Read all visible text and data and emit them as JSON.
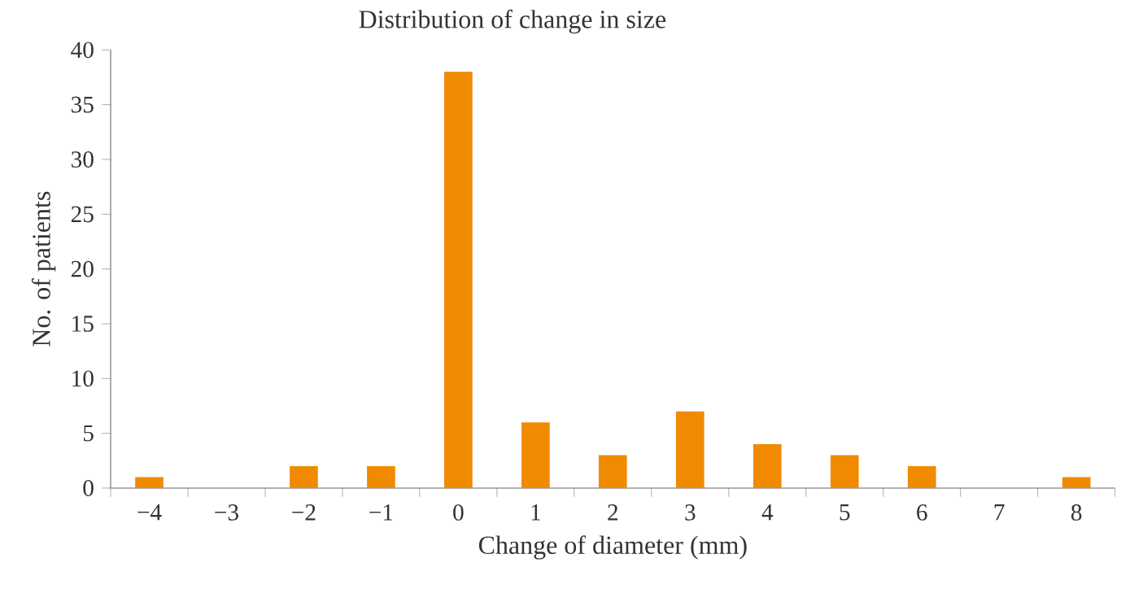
{
  "chart_data": {
    "type": "bar",
    "title": "Distribution of change in size",
    "xlabel": "Change of diameter (mm)",
    "ylabel": "No. of patients",
    "categories": [
      "−4",
      "−3",
      "−2",
      "−1",
      "0",
      "1",
      "2",
      "3",
      "4",
      "5",
      "6",
      "7",
      "8"
    ],
    "values": [
      1,
      0,
      2,
      2,
      38,
      6,
      3,
      7,
      4,
      3,
      2,
      0,
      1
    ],
    "color": "#f08a00",
    "ylim": [
      0,
      40
    ],
    "yticks": [
      0,
      5,
      10,
      15,
      20,
      25,
      30,
      35,
      40
    ],
    "grid": false
  }
}
